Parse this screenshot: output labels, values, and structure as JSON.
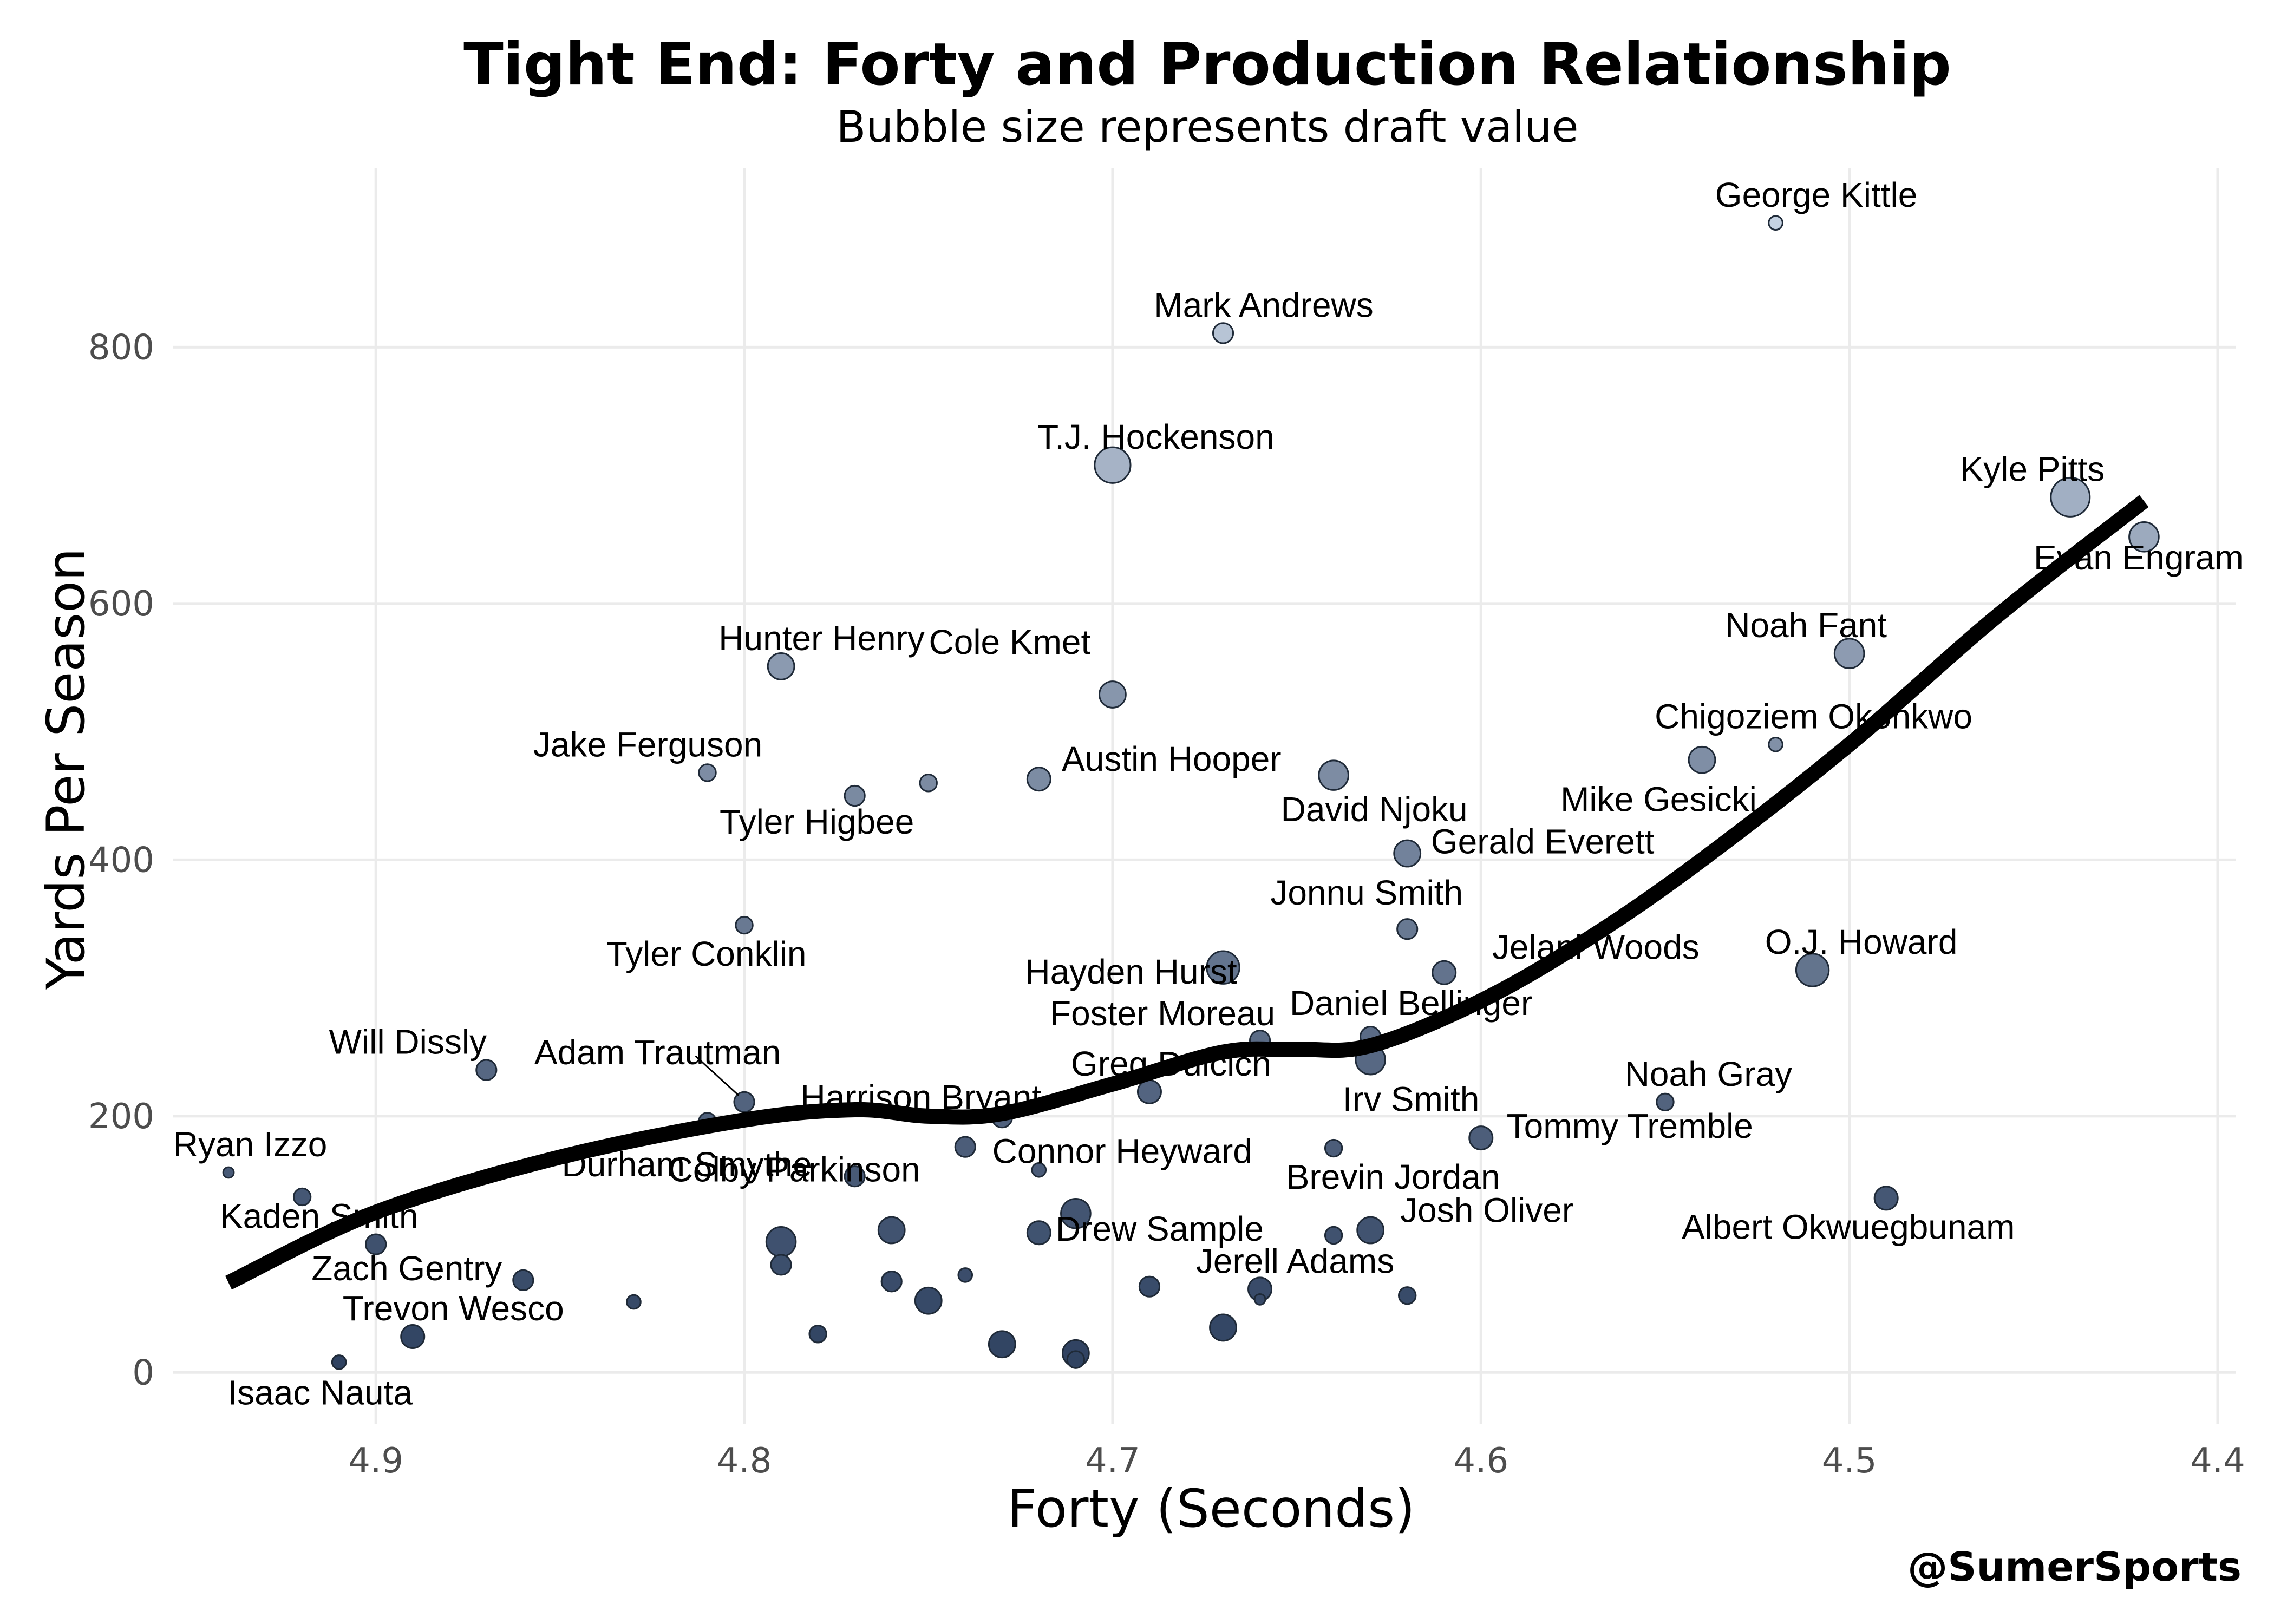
{
  "chart_data": {
    "type": "scatter",
    "title": "Tight End: Forty and Production Relationship",
    "subtitle": "Bubble size represents draft value",
    "xlabel": "Forty (Seconds)",
    "ylabel": "Yards Per Season",
    "x_reversed": true,
    "xlim": [
      4.955,
      4.395
    ],
    "ylim": [
      -40,
      940
    ],
    "x_ticks": [
      "4.9",
      "4.8",
      "4.7",
      "4.6",
      "4.5",
      "4.4"
    ],
    "y_ticks": [
      "0",
      "200",
      "400",
      "600",
      "800"
    ],
    "grid": true,
    "credit": "@SumerSports",
    "color_light": "#c6d2e2",
    "color_dark": "#2e4160",
    "smooth_line_color": "#000000",
    "points": [
      {
        "name": "George Kittle",
        "x": 4.52,
        "y": 897,
        "value": 2
      },
      {
        "name": "Mark Andrews",
        "x": 4.67,
        "y": 811,
        "value": 4
      },
      {
        "name": "T.J. Hockenson",
        "x": 4.7,
        "y": 708,
        "value": 9
      },
      {
        "name": "Kyle Pitts",
        "x": 4.44,
        "y": 683,
        "value": 10
      },
      {
        "name": "Evan Engram",
        "x": 4.42,
        "y": 652,
        "value": 7
      },
      {
        "name": "Noah Fant",
        "x": 4.5,
        "y": 561,
        "value": 7
      },
      {
        "name": "Hunter Henry",
        "x": 4.79,
        "y": 551,
        "value": 6
      },
      {
        "name": "Cole Kmet",
        "x": 4.7,
        "y": 529,
        "value": 6
      },
      {
        "name": "Chigoziem Okonkwo",
        "x": 4.52,
        "y": 490,
        "value": 2
      },
      {
        "name": "Mike Gesicki",
        "x": 4.54,
        "y": 478,
        "value": 6
      },
      {
        "name": "Jake Ferguson",
        "x": 4.81,
        "y": 468,
        "value": 3
      },
      {
        "name": "David Njoku",
        "x": 4.64,
        "y": 466,
        "value": 7
      },
      {
        "name": "Austin Hooper",
        "x": 4.72,
        "y": 463,
        "value": 5
      },
      {
        "name": "Tyler Higbee",
        "x": 4.77,
        "y": 450,
        "value": 4
      },
      {
        "name": "",
        "x": 4.75,
        "y": 460,
        "value": 3
      },
      {
        "name": "Gerald Everett",
        "x": 4.62,
        "y": 405,
        "value": 6
      },
      {
        "name": "Tyler Conklin",
        "x": 4.8,
        "y": 349,
        "value": 3
      },
      {
        "name": "Jonnu Smith",
        "x": 4.62,
        "y": 346,
        "value": 4
      },
      {
        "name": "Hayden Hurst",
        "x": 4.67,
        "y": 316,
        "value": 8
      },
      {
        "name": "O.J. Howard",
        "x": 4.51,
        "y": 314,
        "value": 8
      },
      {
        "name": "Jelani Woods",
        "x": 4.61,
        "y": 312,
        "value": 5
      },
      {
        "name": "Daniel Bellinger",
        "x": 4.63,
        "y": 262,
        "value": 4
      },
      {
        "name": "Foster Moreau",
        "x": 4.66,
        "y": 259,
        "value": 4
      },
      {
        "name": "Irv Smith",
        "x": 4.63,
        "y": 244,
        "value": 7
      },
      {
        "name": "Will Dissly",
        "x": 4.87,
        "y": 236,
        "value": 4
      },
      {
        "name": "Greg Dulcich",
        "x": 4.69,
        "y": 219,
        "value": 5
      },
      {
        "name": "Adam Trautman",
        "x": 4.8,
        "y": 211,
        "value": 4
      },
      {
        "name": "Noah Gray",
        "x": 4.55,
        "y": 211,
        "value": 3
      },
      {
        "name": "Harrison Bryant",
        "x": 4.73,
        "y": 199,
        "value": 4
      },
      {
        "name": "",
        "x": 4.81,
        "y": 196,
        "value": 3
      },
      {
        "name": "Tommy Tremble",
        "x": 4.6,
        "y": 183,
        "value": 5
      },
      {
        "name": "Connor Heyward",
        "x": 4.74,
        "y": 176,
        "value": 4
      },
      {
        "name": "Brevin Jordan",
        "x": 4.64,
        "y": 175,
        "value": 3
      },
      {
        "name": "Ryan Izzo",
        "x": 4.94,
        "y": 156,
        "value": 1
      },
      {
        "name": "",
        "x": 4.72,
        "y": 158,
        "value": 2
      },
      {
        "name": "Durham Smythe",
        "x": 4.77,
        "y": 153,
        "value": 4
      },
      {
        "name": "Albert Okwuegbunam",
        "x": 4.49,
        "y": 136,
        "value": 5
      },
      {
        "name": "",
        "x": 4.92,
        "y": 137,
        "value": 3
      },
      {
        "name": "Drew Sample",
        "x": 4.71,
        "y": 124,
        "value": 7
      },
      {
        "name": "Josh Oliver",
        "x": 4.63,
        "y": 111,
        "value": 6
      },
      {
        "name": "Colby Parkinson",
        "x": 4.76,
        "y": 111,
        "value": 6
      },
      {
        "name": "",
        "x": 4.72,
        "y": 109,
        "value": 5
      },
      {
        "name": "",
        "x": 4.64,
        "y": 107,
        "value": 3
      },
      {
        "name": "",
        "x": 4.79,
        "y": 102,
        "value": 7
      },
      {
        "name": "Kaden Smith",
        "x": 4.9,
        "y": 100,
        "value": 4
      },
      {
        "name": "",
        "x": 4.79,
        "y": 84,
        "value": 4
      },
      {
        "name": "",
        "x": 4.74,
        "y": 76,
        "value": 2
      },
      {
        "name": "Zach Gentry",
        "x": 4.86,
        "y": 72,
        "value": 4
      },
      {
        "name": "",
        "x": 4.76,
        "y": 71,
        "value": 4
      },
      {
        "name": "",
        "x": 4.69,
        "y": 67,
        "value": 4
      },
      {
        "name": "Jerell Adams",
        "x": 4.66,
        "y": 65,
        "value": 5
      },
      {
        "name": "",
        "x": 4.62,
        "y": 60,
        "value": 3
      },
      {
        "name": "",
        "x": 4.66,
        "y": 57,
        "value": 1
      },
      {
        "name": "",
        "x": 4.75,
        "y": 56,
        "value": 6
      },
      {
        "name": "",
        "x": 4.83,
        "y": 55,
        "value": 2
      },
      {
        "name": "",
        "x": 4.67,
        "y": 35,
        "value": 6
      },
      {
        "name": "",
        "x": 4.78,
        "y": 30,
        "value": 3
      },
      {
        "name": "Trevon Wesco",
        "x": 4.89,
        "y": 28,
        "value": 5
      },
      {
        "name": "",
        "x": 4.73,
        "y": 22,
        "value": 6
      },
      {
        "name": "",
        "x": 4.71,
        "y": 15,
        "value": 6
      },
      {
        "name": "",
        "x": 4.71,
        "y": 10,
        "value": 3
      },
      {
        "name": "Isaac Nauta",
        "x": 4.91,
        "y": 8,
        "value": 2
      }
    ],
    "smooth_line": [
      {
        "x": 4.94,
        "y": 70
      },
      {
        "x": 4.9,
        "y": 125
      },
      {
        "x": 4.85,
        "y": 168
      },
      {
        "x": 4.8,
        "y": 197
      },
      {
        "x": 4.77,
        "y": 205
      },
      {
        "x": 4.75,
        "y": 200
      },
      {
        "x": 4.73,
        "y": 202
      },
      {
        "x": 4.7,
        "y": 225
      },
      {
        "x": 4.67,
        "y": 250
      },
      {
        "x": 4.65,
        "y": 252
      },
      {
        "x": 4.63,
        "y": 255
      },
      {
        "x": 4.6,
        "y": 290
      },
      {
        "x": 4.57,
        "y": 340
      },
      {
        "x": 4.54,
        "y": 400
      },
      {
        "x": 4.5,
        "y": 490
      },
      {
        "x": 4.46,
        "y": 590
      },
      {
        "x": 4.42,
        "y": 680
      }
    ]
  }
}
